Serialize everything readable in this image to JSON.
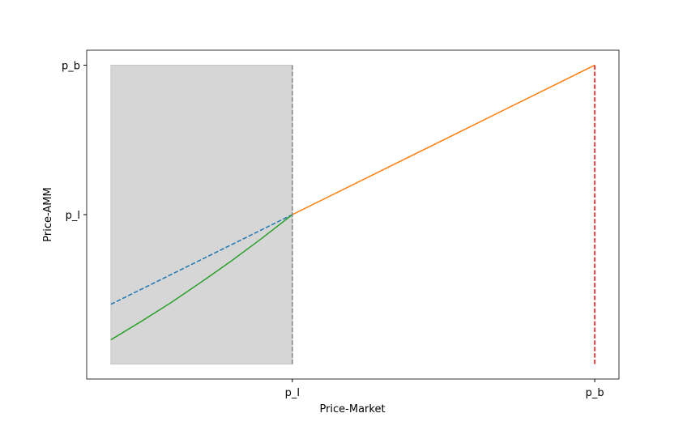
{
  "chart_data": {
    "type": "line",
    "xlabel": "Price-Market",
    "ylabel": "Price-AMM",
    "xlim": [
      0.328,
      1.032
    ],
    "ylim": [
      0.16,
      1.04
    ],
    "xticks": [
      {
        "value": 0.6,
        "label": "p_l"
      },
      {
        "value": 1.0,
        "label": "p_b"
      }
    ],
    "yticks": [
      {
        "value": 0.6,
        "label": "p_l"
      },
      {
        "value": 1.0,
        "label": "p_b"
      }
    ],
    "shaded_region": {
      "x": [
        0.36,
        0.6
      ],
      "y": [
        0.2,
        1.0
      ],
      "color": "#d6d6d6"
    },
    "series": [
      {
        "color": "#1f77b4",
        "style": "dashed",
        "x": [
          0.36,
          0.6
        ],
        "values": [
          0.36,
          0.6
        ]
      },
      {
        "color": "#ff7f0e",
        "style": "solid",
        "x": [
          0.6,
          1.0
        ],
        "values": [
          0.6,
          1.0
        ]
      },
      {
        "color": "#2ca02c",
        "style": "solid",
        "x": [
          0.36,
          0.4,
          0.44,
          0.48,
          0.52,
          0.56,
          0.6
        ],
        "values": [
          0.265,
          0.314,
          0.365,
          0.42,
          0.477,
          0.537,
          0.6
        ]
      },
      {
        "color": "#808080",
        "style": "dashed",
        "x": [
          0.6,
          0.6
        ],
        "values": [
          0.2,
          1.0
        ]
      },
      {
        "color": "#ff0000",
        "style": "dashed",
        "x": [
          1.0,
          1.0
        ],
        "values": [
          0.2,
          1.0
        ]
      }
    ]
  }
}
